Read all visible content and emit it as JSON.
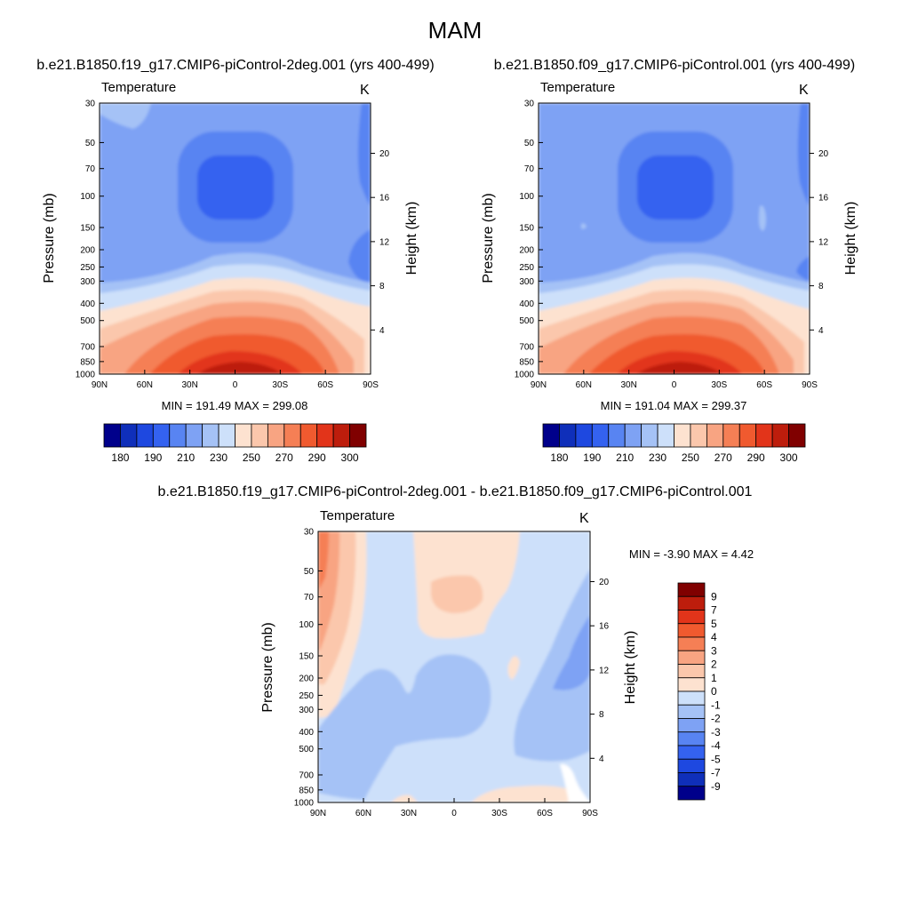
{
  "figure": {
    "title": "MAM",
    "diff_title": "b.e21.B1850.f19_g17.CMIP6-piControl-2deg.001 - b.e21.B1850.f09_g17.CMIP6-piControl.001"
  },
  "palettes": {
    "abs": [
      "#00008b",
      "#0f2fba",
      "#1e48e0",
      "#3462f0",
      "#5884f2",
      "#7ea2f4",
      "#a5c2f6",
      "#cde0fa",
      "#fde2d0",
      "#fbc7ac",
      "#f8a482",
      "#f57f55",
      "#f05a2f",
      "#e2341a",
      "#bd1d0c",
      "#800000"
    ],
    "diff": [
      "#00008b",
      "#0f2fba",
      "#1e48e0",
      "#3462f0",
      "#5884f2",
      "#7ea2f4",
      "#a5c2f6",
      "#cde0fa",
      "#fde2d0",
      "#fbc7ac",
      "#f8a482",
      "#f57f55",
      "#f05a2f",
      "#e2341a",
      "#bd1d0c",
      "#800000"
    ]
  },
  "chart_data": [
    {
      "type": "heatmap",
      "title": "b.e21.B1850.f19_g17.CMIP6-piControl-2deg.001 (yrs 400-499)",
      "variable": "Temperature",
      "units": "K",
      "xlabel": "",
      "ylabel": "Pressure (mb)",
      "y2label": "Height (km)",
      "x_ticks": [
        "90N",
        "60N",
        "30N",
        "0",
        "30S",
        "60S",
        "90S"
      ],
      "y_ticks": [
        30,
        50,
        70,
        100,
        150,
        200,
        250,
        300,
        400,
        500,
        700,
        850,
        1000
      ],
      "y2_ticks": [
        4,
        8,
        12,
        16,
        20
      ],
      "ylim": [
        1000,
        30
      ],
      "stats": "MIN = 191.49  MAX = 299.08",
      "min": 191.49,
      "max": 299.08,
      "colorbar_labels": [
        "180",
        "190",
        "210",
        "230",
        "250",
        "270",
        "290",
        "300"
      ],
      "levels": [
        175,
        180,
        185,
        190,
        200,
        210,
        220,
        230,
        240,
        250,
        260,
        270,
        280,
        290,
        295,
        300
      ]
    },
    {
      "type": "heatmap",
      "title": "b.e21.B1850.f09_g17.CMIP6-piControl.001 (yrs 400-499)",
      "variable": "Temperature",
      "units": "K",
      "xlabel": "",
      "ylabel": "Pressure (mb)",
      "y2label": "Height (km)",
      "x_ticks": [
        "90N",
        "60N",
        "30N",
        "0",
        "30S",
        "60S",
        "90S"
      ],
      "y_ticks": [
        30,
        50,
        70,
        100,
        150,
        200,
        250,
        300,
        400,
        500,
        700,
        850,
        1000
      ],
      "y2_ticks": [
        4,
        8,
        12,
        16,
        20
      ],
      "ylim": [
        1000,
        30
      ],
      "stats": "MIN = 191.04  MAX = 299.37",
      "min": 191.04,
      "max": 299.37,
      "colorbar_labels": [
        "180",
        "190",
        "210",
        "230",
        "250",
        "270",
        "290",
        "300"
      ],
      "levels": [
        175,
        180,
        185,
        190,
        200,
        210,
        220,
        230,
        240,
        250,
        260,
        270,
        280,
        290,
        295,
        300
      ]
    },
    {
      "type": "heatmap",
      "title": "b.e21.B1850.f19_g17.CMIP6-piControl-2deg.001 - b.e21.B1850.f09_g17.CMIP6-piControl.001",
      "variable": "Temperature",
      "units": "K",
      "xlabel": "",
      "ylabel": "Pressure (mb)",
      "y2label": "Height (km)",
      "x_ticks": [
        "90N",
        "60N",
        "30N",
        "0",
        "30S",
        "60S",
        "90S"
      ],
      "y_ticks": [
        30,
        50,
        70,
        100,
        150,
        200,
        250,
        300,
        400,
        500,
        700,
        850,
        1000
      ],
      "y2_ticks": [
        4,
        8,
        12,
        16,
        20
      ],
      "ylim": [
        1000,
        30
      ],
      "stats": "MIN =  -3.90  MAX =   4.42",
      "min": -3.9,
      "max": 4.42,
      "colorbar_labels": [
        "9",
        "7",
        "5",
        "4",
        "3",
        "2",
        "1",
        "0",
        "-1",
        "-2",
        "-3",
        "-4",
        "-5",
        "-7",
        "-9"
      ]
    }
  ]
}
